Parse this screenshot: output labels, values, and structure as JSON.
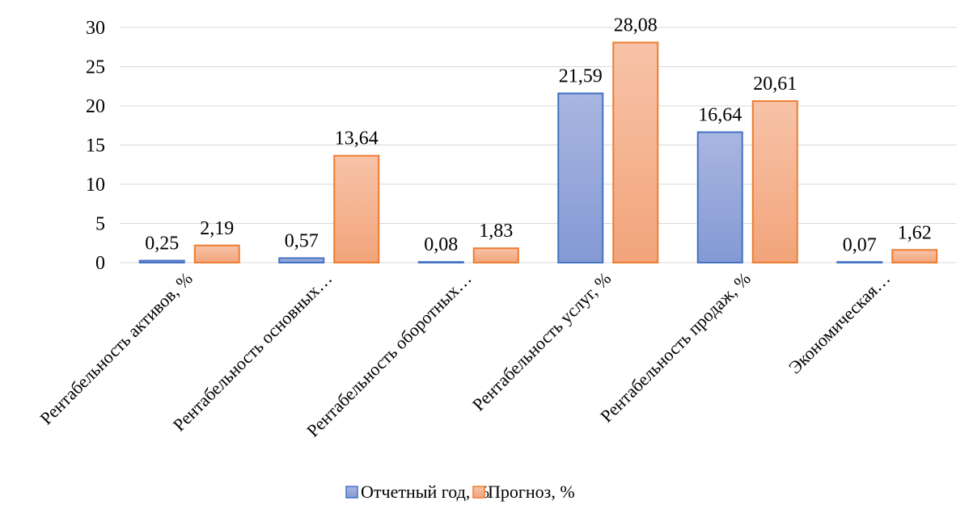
{
  "chart_data": {
    "type": "bar",
    "categories": [
      "Рентабельность активов, %",
      "Рентабельность основных…",
      "Рентабельность оборотных…",
      "Рентабельность услуг, %",
      "Рентабельность продаж, %",
      "Экономическая…"
    ],
    "series": [
      {
        "name": "Отчетный год, %",
        "values": [
          0.25,
          0.57,
          0.08,
          21.59,
          16.64,
          0.07
        ],
        "labels": [
          "0,25",
          "0,57",
          "0,08",
          "21,59",
          "16,64",
          "0,07"
        ],
        "fill_top": "#a9b6e0",
        "fill_bottom": "#8499d4",
        "stroke": "#4472c4"
      },
      {
        "name": "Прогноз, %",
        "values": [
          2.19,
          13.64,
          1.83,
          28.08,
          20.61,
          1.62
        ],
        "labels": [
          "2,19",
          "13,64",
          "1,83",
          "28,08",
          "20,61",
          "1,62"
        ],
        "fill_top": "#f7c3a8",
        "fill_bottom": "#f2a47a",
        "stroke": "#ed7d31"
      }
    ],
    "y_ticks": [
      "0",
      "5",
      "10",
      "15",
      "20",
      "25",
      "30"
    ],
    "ylim": [
      0,
      30
    ],
    "grid": true,
    "legend_position": "bottom",
    "gridline_color": "#d9d9d9"
  }
}
